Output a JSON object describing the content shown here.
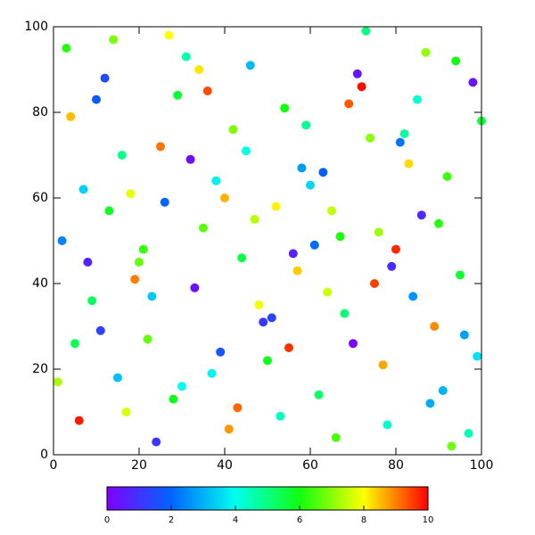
{
  "chart_data": {
    "type": "scatter",
    "x": [
      3,
      12,
      25,
      38,
      47,
      56,
      68,
      77,
      88,
      97,
      6,
      15,
      22,
      33,
      44,
      52,
      63,
      74,
      85,
      94,
      2,
      18,
      28,
      36,
      49,
      59,
      66,
      79,
      83,
      99,
      9,
      14,
      26,
      41,
      45,
      55,
      71,
      76,
      91,
      95,
      4,
      11,
      21,
      31,
      43,
      58,
      64,
      73,
      86,
      93,
      7,
      19,
      29,
      39,
      48,
      53,
      67,
      81,
      89,
      98,
      1,
      16,
      24,
      35,
      46,
      57,
      62,
      72,
      84,
      92,
      8,
      13,
      27,
      37,
      42,
      51,
      69,
      78,
      87,
      96,
      5,
      17,
      23,
      32,
      40,
      54,
      61,
      75,
      82,
      90,
      10,
      20,
      30,
      34,
      50,
      60,
      65,
      70,
      80,
      100
    ],
    "y": [
      95,
      88,
      72,
      64,
      55,
      47,
      33,
      21,
      12,
      5,
      8,
      18,
      27,
      39,
      46,
      58,
      66,
      74,
      83,
      92,
      50,
      61,
      13,
      85,
      31,
      77,
      4,
      44,
      68,
      23,
      36,
      97,
      59,
      6,
      71,
      25,
      89,
      52,
      15,
      42,
      79,
      29,
      48,
      93,
      11,
      67,
      38,
      99,
      56,
      2,
      62,
      41,
      84,
      24,
      35,
      9,
      51,
      73,
      30,
      87,
      17,
      70,
      3,
      53,
      91,
      43,
      14,
      86,
      37,
      65,
      45,
      57,
      98,
      19,
      76,
      32,
      82,
      7,
      94,
      28,
      26,
      10,
      37,
      69,
      60,
      81,
      49,
      40,
      75,
      54,
      83,
      45,
      16,
      90,
      22,
      63,
      57,
      26,
      48,
      78
    ],
    "color_values": [
      6.2,
      1.5,
      9.1,
      3.8,
      7.4,
      0.6,
      5.1,
      8.7,
      2.9,
      4.5,
      9.8,
      3.2,
      6.7,
      0.3,
      5.5,
      8.1,
      1.9,
      7.0,
      4.2,
      6.0,
      2.4,
      7.8,
      5.9,
      9.4,
      1.1,
      4.8,
      6.5,
      0.9,
      8.3,
      3.6,
      5.3,
      6.9,
      2.0,
      8.8,
      4.1,
      9.6,
      0.5,
      7.2,
      3.0,
      5.7,
      8.5,
      1.3,
      6.3,
      4.6,
      9.2,
      2.7,
      7.6,
      5.0,
      0.8,
      6.8,
      3.4,
      9.0,
      5.6,
      1.7,
      7.9,
      4.4,
      6.1,
      2.2,
      8.9,
      0.4,
      7.3,
      4.9,
      1.0,
      6.6,
      3.1,
      8.4,
      5.2,
      9.9,
      2.6,
      6.4,
      0.7,
      5.8,
      8.0,
      3.9,
      6.9,
      1.4,
      9.3,
      4.3,
      7.1,
      2.8,
      5.4,
      7.7,
      3.3,
      0.2,
      8.6,
      6.0,
      2.1,
      9.5,
      4.7,
      6.2,
      1.8,
      6.7,
      4.0,
      8.2,
      5.9,
      3.5,
      7.5,
      0.1,
      9.7,
      5.6
    ],
    "colormap": [
      "#8000ff",
      "#0064ff",
      "#00ffee",
      "#10ff10",
      "#ffff00",
      "#ff0000"
    ],
    "clim": [
      0,
      10
    ],
    "cticks": [
      0,
      2,
      4,
      6,
      8,
      10
    ],
    "xlim": [
      0,
      100
    ],
    "ylim": [
      0,
      100
    ],
    "xticks": [
      0,
      20,
      40,
      60,
      80,
      100
    ],
    "yticks": [
      0,
      20,
      40,
      60,
      80,
      100
    ]
  }
}
